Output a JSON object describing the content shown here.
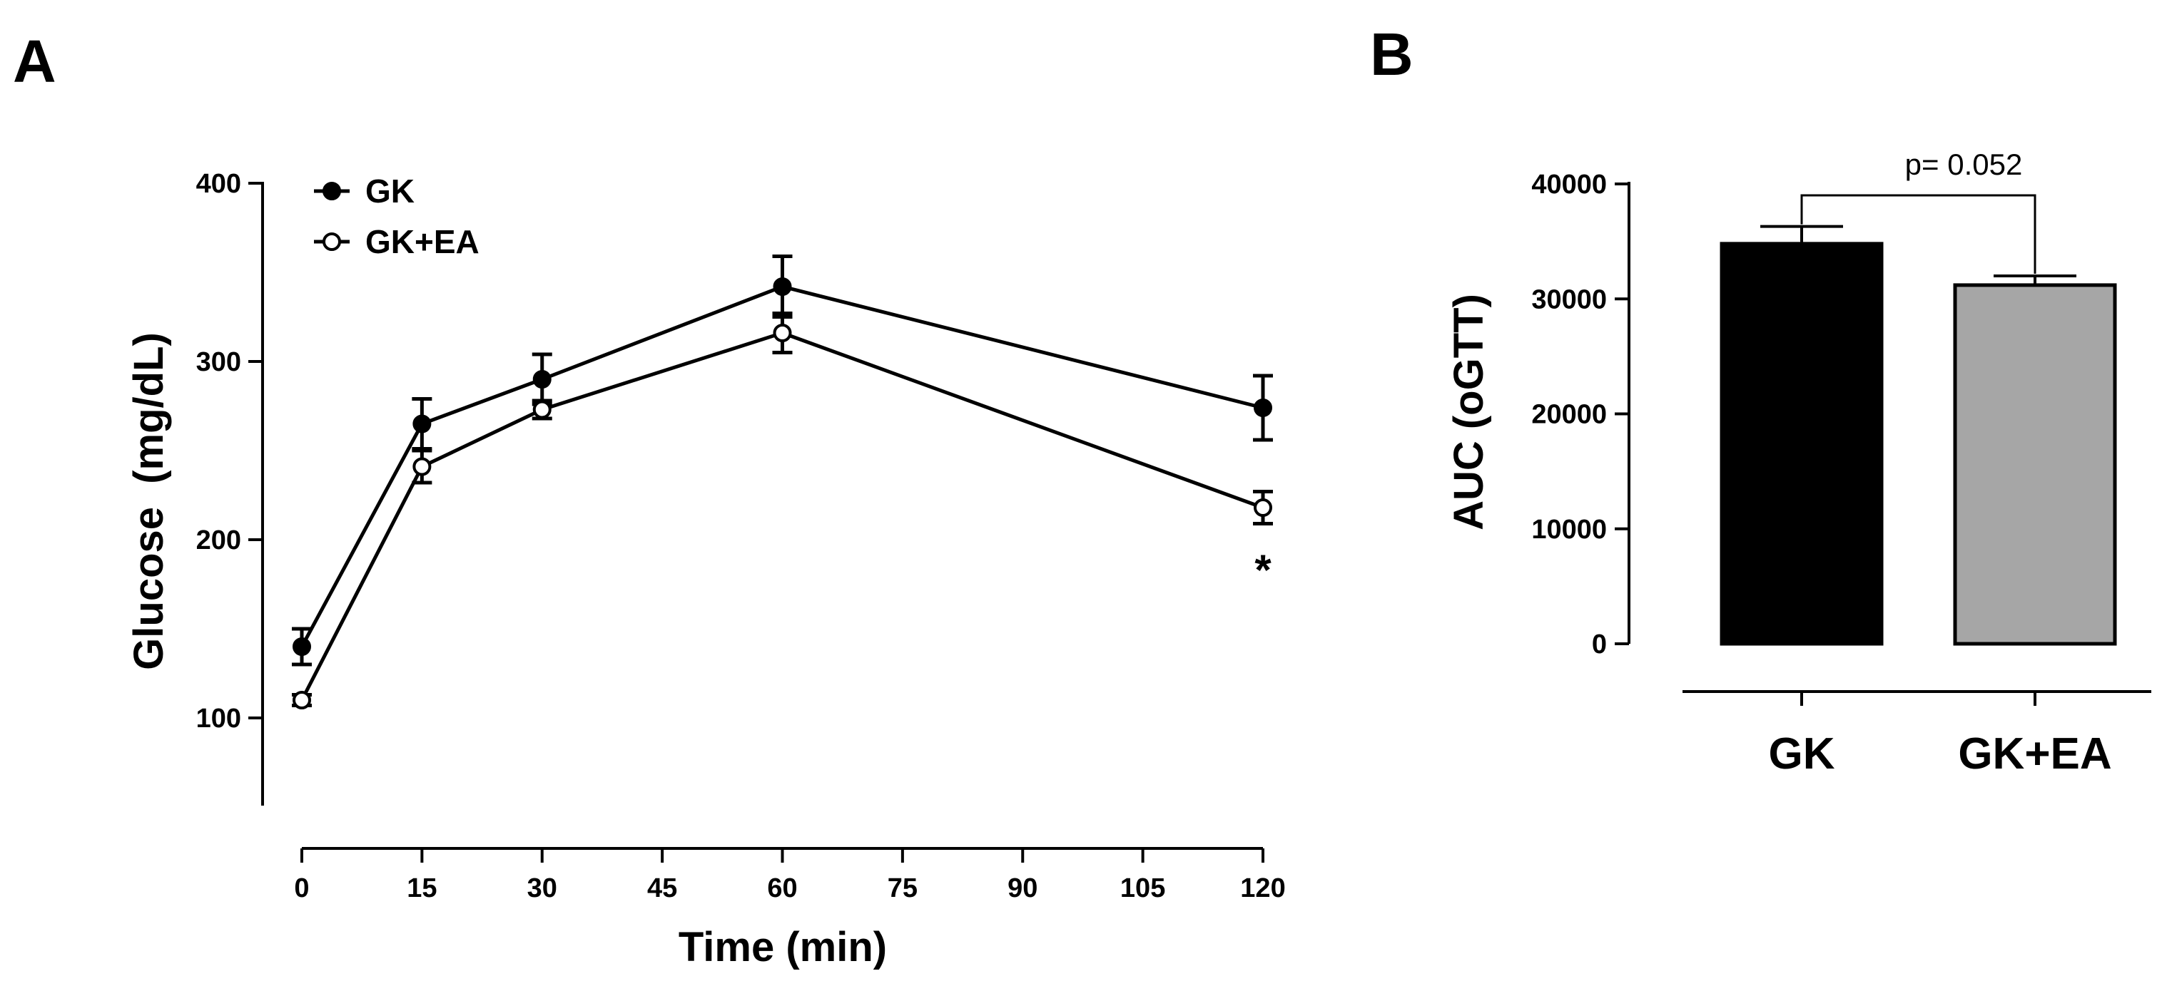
{
  "figure": {
    "panels": [
      {
        "letter": "A"
      },
      {
        "letter": "B"
      }
    ]
  },
  "chart_data": [
    {
      "panel": "A",
      "type": "line",
      "title": "",
      "xlabel": "Time (min)",
      "ylabel": "Glucose  (mg/dL)",
      "xlim": [
        0,
        120
      ],
      "ylim": [
        50,
        400
      ],
      "xticks": [
        0,
        15,
        30,
        45,
        60,
        75,
        90,
        105,
        120
      ],
      "yticks": [
        100,
        200,
        300,
        400
      ],
      "grid": false,
      "legend_position": "top-left",
      "x": [
        0,
        15,
        30,
        60,
        120
      ],
      "series": [
        {
          "name": "GK",
          "marker": "filled-circle",
          "values": [
            140,
            265,
            290,
            342,
            274
          ],
          "errors": [
            10,
            14,
            14,
            17,
            18
          ]
        },
        {
          "name": "GK+EA",
          "marker": "open-circle",
          "values": [
            110,
            241,
            273,
            316,
            218
          ],
          "errors": [
            3,
            9,
            5,
            11,
            9
          ]
        }
      ],
      "annotations": [
        {
          "text": "*",
          "x": 120,
          "series": "GK+EA"
        }
      ]
    },
    {
      "panel": "B",
      "type": "bar",
      "title": "",
      "xlabel": "",
      "ylabel": "AUC (oGTT)",
      "ylim": [
        0,
        40000
      ],
      "yticks": [
        0,
        10000,
        20000,
        30000,
        40000
      ],
      "grid": false,
      "categories": [
        "GK",
        "GK+EA"
      ],
      "values": [
        34800,
        31200
      ],
      "errors": [
        1500,
        800
      ],
      "colors": [
        "#000000",
        "#a6a6a6"
      ],
      "annotations": [
        {
          "text": "p= 0.052",
          "between": [
            "GK",
            "GK+EA"
          ]
        }
      ]
    }
  ]
}
